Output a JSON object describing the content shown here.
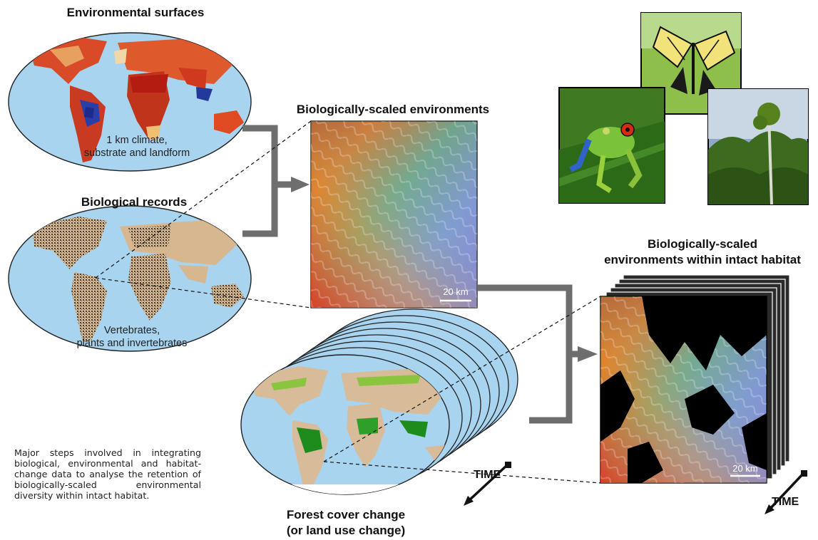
{
  "panels": {
    "environmental_surfaces": {
      "title": "Environmental surfaces",
      "subtitle_lines": [
        "1 km climate,",
        "substrate and landform"
      ]
    },
    "biological_records": {
      "title": "Biological records",
      "subtitle_lines": [
        "Vertebrates,",
        "plants and invertebrates"
      ]
    },
    "bio_scaled_env": {
      "title": "Biologically-scaled environments",
      "scale_bar": "20 km"
    },
    "bio_scaled_intact": {
      "title_lines": [
        "Biologically-scaled",
        "environments within intact habitat"
      ],
      "scale_bar": "20 km",
      "time_label": "TIME"
    },
    "forest_cover": {
      "title_lines": [
        "Forest cover change",
        "(or land use change)"
      ],
      "time_label": "TIME"
    },
    "photos": [
      "butterfly-photo",
      "frog-photo",
      "forest-photo"
    ]
  },
  "caption": "Major steps involved in integrating biological, environmental and habitat-change data to analyse the retention of biologically-scaled environmental diversity within intact habitat.",
  "colors": {
    "ocean": "#a8d4f0",
    "land": "#d8bb98",
    "forest": "#1d8c1d",
    "arrow": "#6e6e6e",
    "hot": "#d4261a",
    "cold": "#27318f"
  }
}
